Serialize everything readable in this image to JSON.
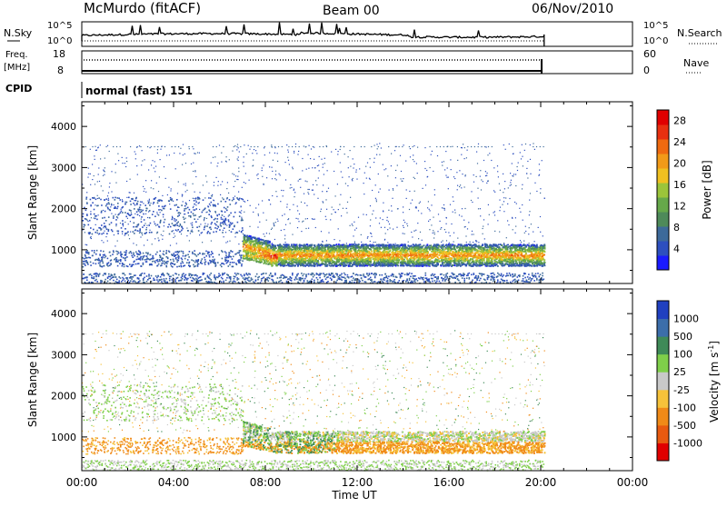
{
  "header": {
    "station": "McMurdo (fitACF)",
    "beam": "Beam 00",
    "date": "06/Nov/2010"
  },
  "top_panels": {
    "nsky_label": "N.Sky",
    "nsky_ticks": [
      "10^5",
      "10^0"
    ],
    "nsearch_label": "N.Search",
    "nsearch_ticks": [
      "10^5",
      "10^0"
    ],
    "freq_label_1": "Freq.",
    "freq_label_2": "[MHz]",
    "freq_ticks": [
      "18",
      "8"
    ],
    "nave_label": "Nave",
    "nave_ticks": [
      "60",
      "0"
    ],
    "cpid_label": "CPID",
    "cpid_value": "normal (fast) 151"
  },
  "chart_data": [
    {
      "type": "heatmap",
      "name": "power",
      "xlabel": "Time UT",
      "ylabel": "Slant Range [km]",
      "x_ticks": [
        "00:00",
        "04:00",
        "08:00",
        "12:00",
        "16:00",
        "20:00",
        "00:00"
      ],
      "y_ticks": [
        "1000",
        "2000",
        "3000",
        "4000"
      ],
      "xlim_hours": [
        0,
        24
      ],
      "ylim_km": [
        180,
        4600
      ],
      "colorbar_label": "Power [dB]",
      "colorbar_ticks": [
        "4",
        "8",
        "12",
        "16",
        "20",
        "24",
        "28"
      ],
      "colorbar_range": [
        0,
        30
      ],
      "data_end_hour": 20.15
    },
    {
      "type": "heatmap",
      "name": "velocity",
      "xlabel": "Time UT",
      "ylabel": "Slant Range [km]",
      "x_ticks": [
        "00:00",
        "04:00",
        "08:00",
        "12:00",
        "16:00",
        "20:00",
        "00:00"
      ],
      "y_ticks": [
        "1000",
        "2000",
        "3000",
        "4000"
      ],
      "xlim_hours": [
        0,
        24
      ],
      "ylim_km": [
        180,
        4600
      ],
      "colorbar_label": "Velocity [m s",
      "colorbar_label_sup": "-1",
      "colorbar_label_end": "]",
      "colorbar_ticks": [
        "1000",
        "500",
        "100",
        "25",
        "-25",
        "-100",
        "-500",
        "-1000"
      ],
      "data_end_hour": 20.15
    }
  ],
  "colors": {
    "power_scale": [
      "#1a1aff",
      "#2d4fbf",
      "#3d6a9a",
      "#4e8a5a",
      "#66a84a",
      "#9bc43a",
      "#f0c020",
      "#f29a18",
      "#ef6a10",
      "#e83010",
      "#e00000"
    ],
    "velocity_scale": [
      "#2040c0",
      "#3c6eaa",
      "#3f8a58",
      "#7fcf4a",
      "#c9c9c9",
      "#f6c23a",
      "#f08a18",
      "#e85a10",
      "#e00000"
    ]
  }
}
